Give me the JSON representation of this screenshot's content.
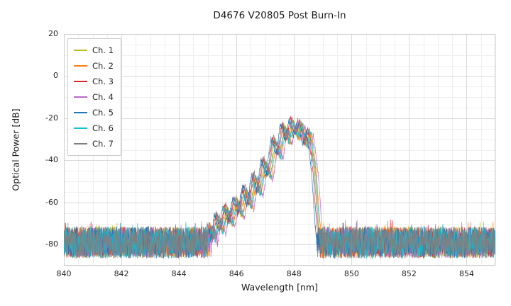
{
  "chart_data": {
    "type": "line",
    "title": "D4676 V20805 Post Burn-In",
    "xlabel": "Wavelength [nm]",
    "ylabel": "Optical Power [dB]",
    "xlim": [
      840,
      855
    ],
    "ylim": [
      -90,
      20
    ],
    "xticks": [
      840,
      842,
      844,
      846,
      848,
      850,
      852,
      854
    ],
    "yticks": [
      20,
      0,
      -20,
      -40,
      -60,
      -80
    ],
    "grid": true,
    "minor_grid": true,
    "legend_position": "upper left",
    "noise_floor": {
      "mean_db": -79,
      "spread_db": 15,
      "sample_step_nm": 0.008
    },
    "signal_region_nm": [
      844.98,
      848.95
    ],
    "signal_envelope_db": [
      [
        845.0,
        -82
      ],
      [
        845.1,
        -71
      ],
      [
        845.22,
        -79
      ],
      [
        845.35,
        -66
      ],
      [
        845.5,
        -74
      ],
      [
        845.65,
        -62
      ],
      [
        845.82,
        -70
      ],
      [
        846.0,
        -58
      ],
      [
        846.15,
        -66
      ],
      [
        846.32,
        -53
      ],
      [
        846.48,
        -62
      ],
      [
        846.65,
        -47
      ],
      [
        846.8,
        -56
      ],
      [
        846.98,
        -40
      ],
      [
        847.15,
        -48
      ],
      [
        847.32,
        -30
      ],
      [
        847.5,
        -38
      ],
      [
        847.65,
        -23
      ],
      [
        847.8,
        -31
      ],
      [
        847.95,
        -21
      ],
      [
        848.1,
        -29
      ],
      [
        848.25,
        -22
      ],
      [
        848.42,
        -33
      ],
      [
        848.55,
        -26
      ],
      [
        848.72,
        -45
      ],
      [
        848.85,
        -70
      ],
      [
        848.92,
        -82
      ]
    ],
    "series": [
      {
        "name": "Ch. 1",
        "color": "#bcbd22",
        "dx": 0.0,
        "dy": 0.0,
        "seed": 11
      },
      {
        "name": "Ch. 2",
        "color": "#ff7f0e",
        "dx": 0.06,
        "dy": -1.0,
        "seed": 23
      },
      {
        "name": "Ch. 3",
        "color": "#d62728",
        "dx": -0.07,
        "dy": 0.8,
        "seed": 37
      },
      {
        "name": "Ch. 4",
        "color": "#bb66c9",
        "dx": 0.12,
        "dy": -1.6,
        "seed": 41
      },
      {
        "name": "Ch. 5",
        "color": "#1f77b4",
        "dx": -0.12,
        "dy": 0.4,
        "seed": 59
      },
      {
        "name": "Ch. 6",
        "color": "#17becf",
        "dx": 0.03,
        "dy": -0.5,
        "seed": 67
      },
      {
        "name": "Ch. 7",
        "color": "#7f7f7f",
        "dx": -0.03,
        "dy": 1.2,
        "seed": 83
      }
    ],
    "colors": {
      "grid_major": "#d9d9d9",
      "grid_minor": "#efefef",
      "spine": "#cfcfcf",
      "background": "#ffffff"
    }
  }
}
